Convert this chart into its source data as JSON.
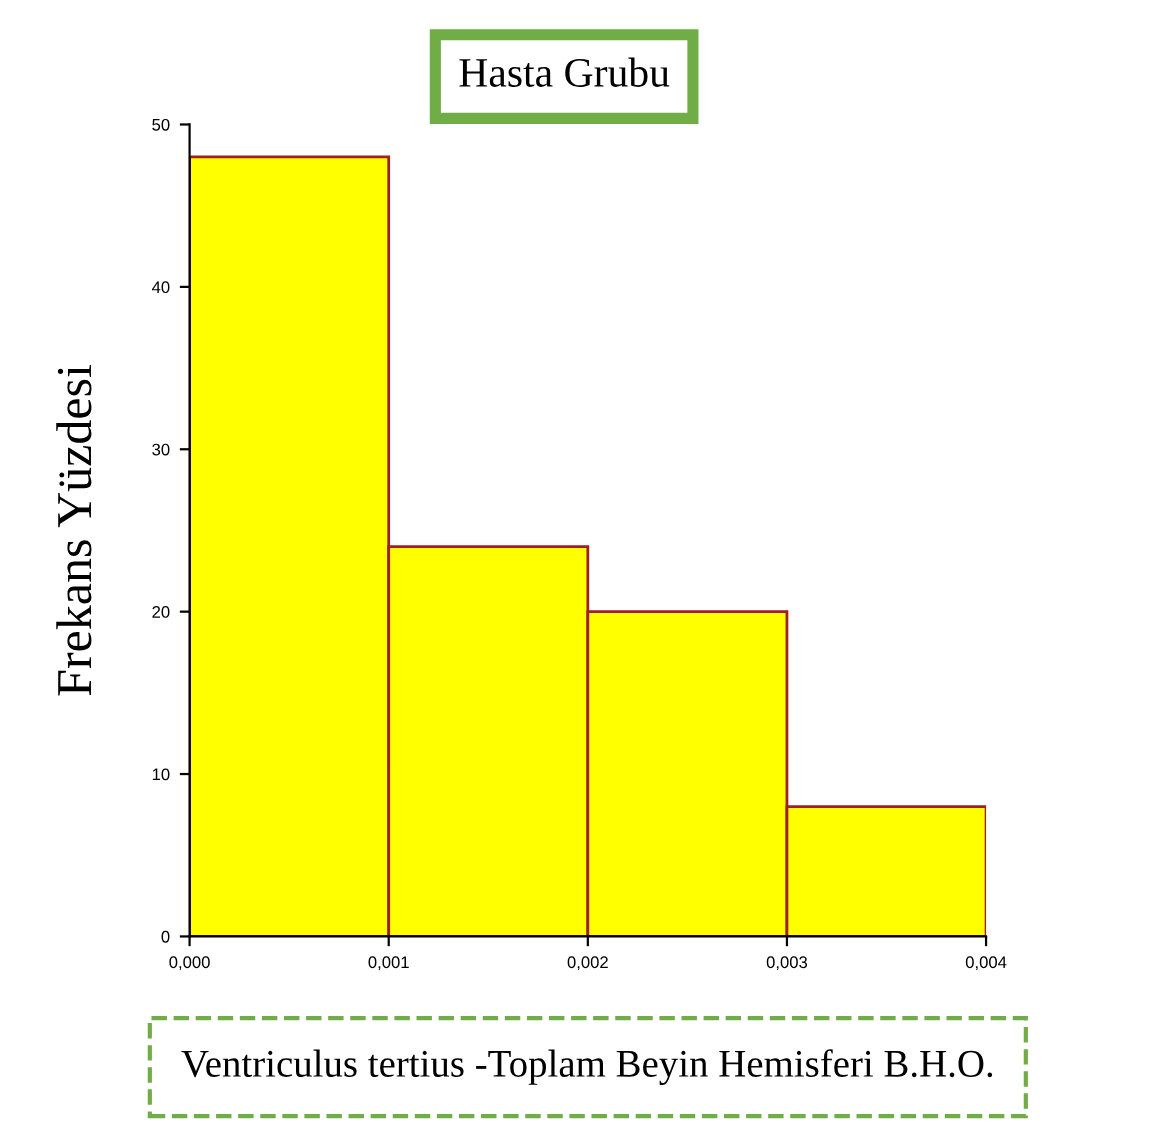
{
  "chart_data": {
    "type": "histogram",
    "title": "Hasta Grubu",
    "xlabel": "Ventriculus tertius -Toplam Beyin Hemisferi B.H.O.",
    "ylabel": "Frekans Yüzdesi",
    "bins": [
      0,
      0.001,
      0.002,
      0.003,
      0.004
    ],
    "values": [
      48,
      24,
      20,
      8
    ],
    "color": "#ffff00",
    "xlim": [
      0,
      0.004
    ],
    "xticks": [
      {
        "value": 0,
        "label": "0,000"
      },
      {
        "value": 0.001,
        "label": "0,001"
      },
      {
        "value": 0.002,
        "label": "0,002"
      },
      {
        "value": 0.003,
        "label": "0,003"
      },
      {
        "value": 0.004,
        "label": "0,004"
      }
    ],
    "ylim": [
      0,
      50
    ],
    "yticks": [
      0,
      10,
      20,
      30,
      40,
      50
    ],
    "grid": false,
    "legend": false
  }
}
